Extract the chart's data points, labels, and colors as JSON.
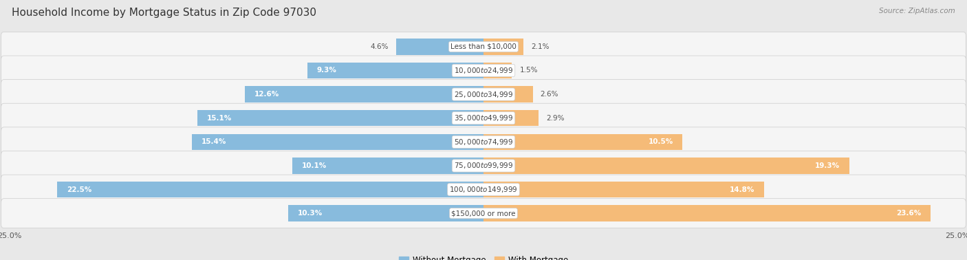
{
  "title": "Household Income by Mortgage Status in Zip Code 97030",
  "source": "Source: ZipAtlas.com",
  "categories": [
    "Less than $10,000",
    "$10,000 to $24,999",
    "$25,000 to $34,999",
    "$35,000 to $49,999",
    "$50,000 to $74,999",
    "$75,000 to $99,999",
    "$100,000 to $149,999",
    "$150,000 or more"
  ],
  "without_mortgage": [
    4.6,
    9.3,
    12.6,
    15.1,
    15.4,
    10.1,
    22.5,
    10.3
  ],
  "with_mortgage": [
    2.1,
    1.5,
    2.6,
    2.9,
    10.5,
    19.3,
    14.8,
    23.6
  ],
  "without_mortgage_color": "#88bbdd",
  "with_mortgage_color": "#f5bb78",
  "background_color": "#e8e8e8",
  "row_bg_color": "#f5f5f5",
  "row_bg_color_alt": "#ebebeb",
  "axis_limit": 25.0,
  "title_fontsize": 11,
  "label_fontsize": 7.5,
  "tick_fontsize": 8,
  "legend_fontsize": 8.5,
  "without_mortgage_label_threshold": 6.0,
  "with_mortgage_label_threshold": 5.0
}
